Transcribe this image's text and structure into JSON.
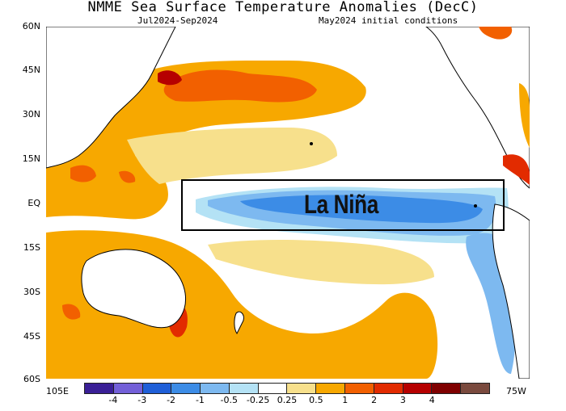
{
  "header": {
    "title": "NMME Sea Surface Temperature Anomalies (DecC)",
    "subtitle_left": "Jul2024-Sep2024",
    "subtitle_right": "May2024 initial conditions"
  },
  "map": {
    "lat_labels": [
      "60N",
      "45N",
      "30N",
      "15N",
      "EQ",
      "15S",
      "30S",
      "45S",
      "60S"
    ],
    "lon_left": "105E",
    "lon_right": "75W",
    "annotation": "La Niña"
  },
  "colorbar": {
    "colors": [
      "#3a1f96",
      "#7360d8",
      "#1f5fd8",
      "#3c8ce6",
      "#7db9f0",
      "#b4e2f5",
      "#ffffff",
      "#f7e08c",
      "#f7a800",
      "#f26000",
      "#e22b00",
      "#b60000",
      "#7f0000",
      "#7a4a3e"
    ],
    "labels": [
      "-4",
      "-3",
      "-2",
      "-1",
      "-0.5",
      "-0.25",
      "0.25",
      "0.5",
      "1",
      "2",
      "3",
      "4"
    ]
  }
}
